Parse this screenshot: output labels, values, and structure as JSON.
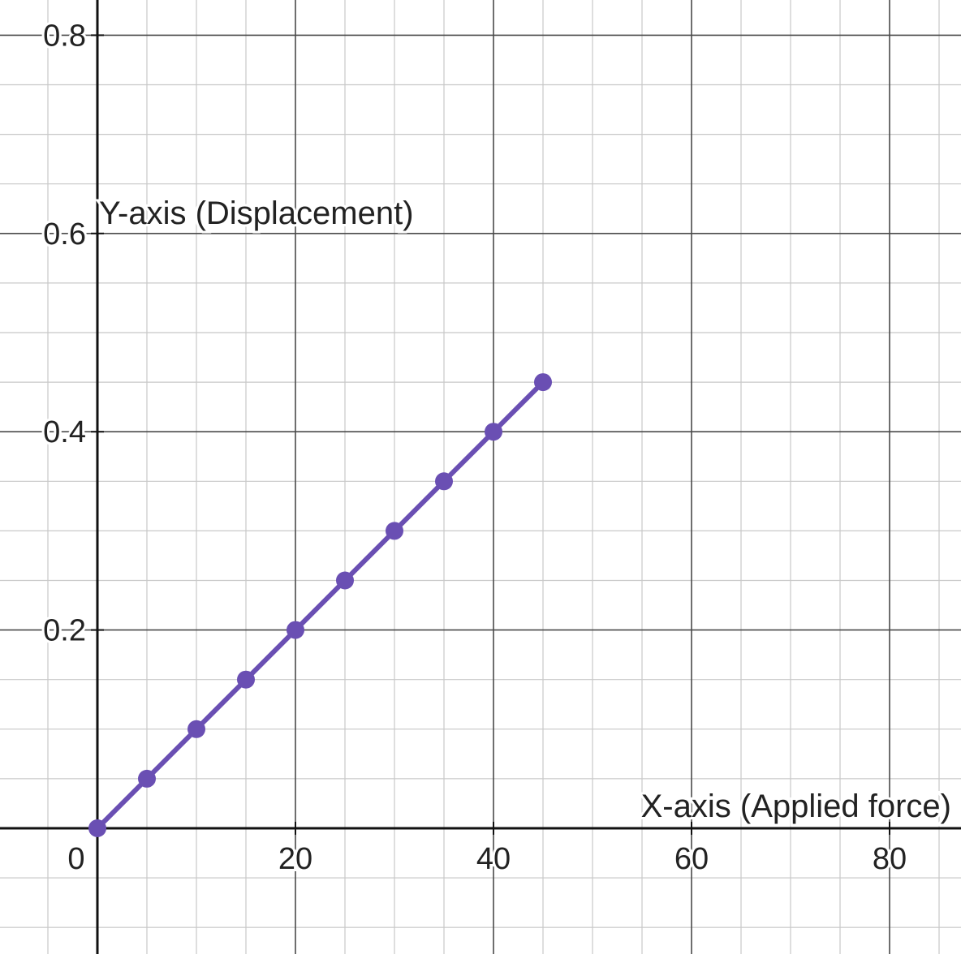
{
  "chart_data": {
    "type": "line",
    "xlabel": "X-axis (Applied force)",
    "ylabel": "Y-axis (Displacement)",
    "xlim": [
      -10,
      87
    ],
    "ylim": [
      -0.128,
      0.835
    ],
    "x_ticks": [
      0,
      20,
      40,
      60,
      80
    ],
    "x_tick_labels": [
      "0",
      "20",
      "40",
      "60",
      "80"
    ],
    "y_ticks": [
      0.2,
      0.4,
      0.6,
      0.8
    ],
    "y_tick_labels": [
      "0.2",
      "0.4",
      "0.6",
      "0.8"
    ],
    "grid": true,
    "series": [
      {
        "x": [
          0,
          5,
          10,
          15,
          20,
          25,
          30,
          35,
          40,
          45
        ],
        "y": [
          0,
          0.05,
          0.1,
          0.15,
          0.2,
          0.25,
          0.3,
          0.35,
          0.4,
          0.45
        ],
        "color": "#6a4fb3"
      }
    ]
  },
  "colors": {
    "line": "#6a4fb3",
    "axis": "#111111",
    "major_grid": "#4a4a4a",
    "minor_grid": "#c8c8c8"
  }
}
